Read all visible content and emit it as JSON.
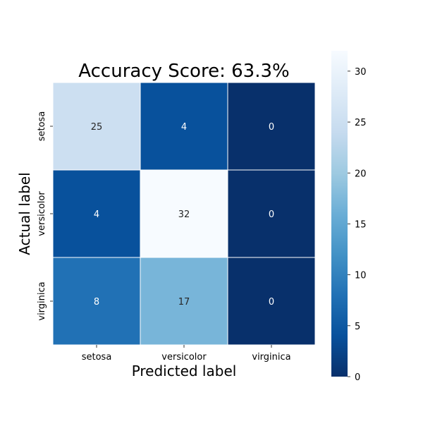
{
  "chart_data": {
    "type": "heatmap",
    "title": "Accuracy Score: 63.3%",
    "xlabel": "Predicted label",
    "ylabel": "Actual label",
    "x_categories": [
      "setosa",
      "versicolor",
      "virginica"
    ],
    "y_categories": [
      "setosa",
      "versicolor",
      "virginica"
    ],
    "values": [
      [
        25,
        4,
        0
      ],
      [
        4,
        32,
        0
      ],
      [
        8,
        17,
        0
      ]
    ],
    "colormap": "Blues_r",
    "colorbar": {
      "range": [
        0,
        32
      ],
      "ticks": [
        "0",
        "5",
        "10",
        "15",
        "20",
        "25",
        "30"
      ]
    },
    "grid_line_color": "#ffffff"
  }
}
